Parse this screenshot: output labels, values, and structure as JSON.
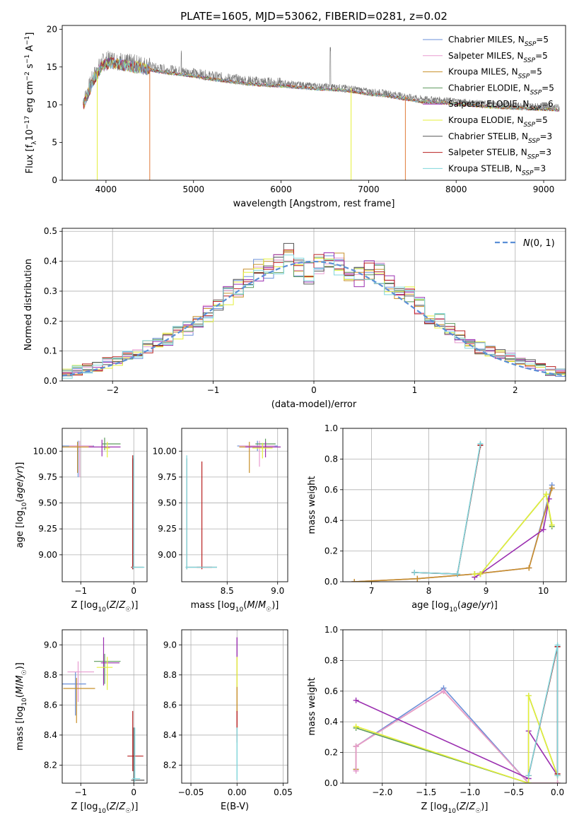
{
  "figure_title": "PLATE=1605, MJD=53062, FIBERID=0281, z=0.02",
  "colors": {
    "Chabrier MILES": "#6a8fd8",
    "Salpeter MILES": "#e89bd0",
    "Kroupa MILES": "#c8902a",
    "Chabrier ELODIE": "#5c9a5c",
    "Salpeter ELODIE": "#9b2fb0",
    "Kroupa ELODIE": "#e4ef3a",
    "Chabrier STELIB": "#555555",
    "Salpeter STELIB": "#b82020",
    "Kroupa STELIB": "#7fd6dc",
    "data": "#777777",
    "model_accent": "#e07a3a",
    "normal_curve": "#5b8fd6"
  },
  "chart_data": [
    {
      "id": "spectrum",
      "type": "line",
      "title": "PLATE=1605, MJD=53062, FIBERID=0281, z=0.02",
      "xlabel": "wavelength [Angstrom, rest frame]",
      "ylabel": "Flux [f_λ 10^-17 erg cm^-2 s^-1 A^-1]",
      "xlim": [
        3500,
        9250
      ],
      "ylim": [
        0,
        20.5
      ],
      "xticks": [
        4000,
        5000,
        6000,
        7000,
        8000,
        9000
      ],
      "yticks": [
        0,
        5,
        10,
        15,
        20
      ],
      "grid": false,
      "legend_position": "top-right",
      "legend": [
        "Chabrier MILES, N_SSP=5",
        "Salpeter MILES, N_SSP=5",
        "Kroupa MILES, N_SSP=5",
        "Chabrier ELODIE, N_SSP=5",
        "Salpeter ELODIE, N_SSP=6",
        "Kroupa ELODIE, N_SSP=5",
        "Chabrier STELIB, N_SSP=3",
        "Salpeter STELIB, N_SSP=3",
        "Kroupa STELIB, N_SSP=3"
      ],
      "continuum": {
        "x": [
          3750,
          3850,
          3950,
          4050,
          4150,
          4250,
          4400,
          4600,
          4800,
          5000,
          5200,
          5400,
          5600,
          5800,
          6000,
          6200,
          6400,
          6600,
          6800,
          7000,
          7200,
          7400,
          7600,
          7800,
          8000,
          8200,
          8400,
          8600,
          8800,
          9000,
          9200
        ],
        "y": [
          10.5,
          13.5,
          15.5,
          16.0,
          15.8,
          15.5,
          15.3,
          14.8,
          14.5,
          14.2,
          13.8,
          13.5,
          13.2,
          13.0,
          12.9,
          12.7,
          12.5,
          12.4,
          12.2,
          11.8,
          11.6,
          11.2,
          10.8,
          10.7,
          10.5,
          10.3,
          10.1,
          10.0,
          9.9,
          9.8,
          9.7
        ]
      }
    },
    {
      "id": "residuals",
      "type": "bar",
      "xlabel": "(data-model)/error",
      "ylabel": "Normed distribution",
      "xlim": [
        -2.5,
        2.5
      ],
      "ylim": [
        0,
        0.51
      ],
      "xticks": [
        -2,
        -1,
        0,
        1,
        2
      ],
      "yticks": [
        0.0,
        0.1,
        0.2,
        0.3,
        0.4,
        0.5
      ],
      "grid": true,
      "legend_position": "top-right",
      "legend": [
        "N(0,1)"
      ],
      "bin_edges": [
        -2.5,
        -2.4,
        -2.3,
        -2.2,
        -2.1,
        -2.0,
        -1.9,
        -1.8,
        -1.7,
        -1.6,
        -1.5,
        -1.4,
        -1.3,
        -1.2,
        -1.1,
        -1.0,
        -0.9,
        -0.8,
        -0.7,
        -0.6,
        -0.5,
        -0.4,
        -0.3,
        -0.2,
        -0.1,
        0.0,
        0.1,
        0.2,
        0.3,
        0.4,
        0.5,
        0.6,
        0.7,
        0.8,
        0.9,
        1.0,
        1.1,
        1.2,
        1.3,
        1.4,
        1.5,
        1.6,
        1.7,
        1.8,
        1.9,
        2.0,
        2.1,
        2.2,
        2.3,
        2.4,
        2.5
      ],
      "histogram": [
        0.025,
        0.035,
        0.04,
        0.05,
        0.06,
        0.065,
        0.08,
        0.095,
        0.115,
        0.13,
        0.14,
        0.16,
        0.175,
        0.2,
        0.225,
        0.26,
        0.285,
        0.31,
        0.34,
        0.37,
        0.38,
        0.395,
        0.42,
        0.38,
        0.36,
        0.39,
        0.41,
        0.39,
        0.36,
        0.35,
        0.37,
        0.36,
        0.32,
        0.3,
        0.285,
        0.25,
        0.21,
        0.2,
        0.17,
        0.15,
        0.13,
        0.11,
        0.1,
        0.085,
        0.075,
        0.065,
        0.055,
        0.045,
        0.035,
        0.03
      ],
      "normal_curve": {
        "label": "N(0,1)",
        "mu": 0,
        "sigma": 1
      }
    },
    {
      "id": "age_vs_Z",
      "type": "scatter",
      "xlabel": "Z [log10(Z/Z☉)]",
      "ylabel": "age [log10(age/yr)]",
      "xlim": [
        -1.35,
        0.25
      ],
      "ylim": [
        8.74,
        10.22
      ],
      "xticks": [
        -1,
        0
      ],
      "yticks": [
        9.0,
        9.25,
        9.5,
        9.75,
        10.0
      ],
      "grid": true,
      "crosses": [
        {
          "s": "Chabrier MILES",
          "x": -1.05,
          "y": 10.05,
          "xe": [
            0.3,
            0.3
          ],
          "ye": [
            0.3,
            0.05
          ]
        },
        {
          "s": "Salpeter MILES",
          "x": -1.02,
          "y": 10.05,
          "xe": [
            0.2,
            0.25
          ],
          "ye": [
            0.3,
            0.05
          ]
        },
        {
          "s": "Kroupa MILES",
          "x": -1.06,
          "y": 10.04,
          "xe": [
            0.3,
            0.3
          ],
          "ye": [
            0.25,
            0.05
          ]
        },
        {
          "s": "Chabrier ELODIE",
          "x": -0.55,
          "y": 10.07,
          "xe": [
            0.05,
            0.3
          ],
          "ye": [
            0.06,
            0.06
          ]
        },
        {
          "s": "Salpeter ELODIE",
          "x": -0.6,
          "y": 10.04,
          "xe": [
            0.25,
            0.35
          ],
          "ye": [
            0.09,
            0.07
          ]
        },
        {
          "s": "Kroupa ELODIE",
          "x": -0.5,
          "y": 10.03,
          "xe": [
            0.05,
            0.05
          ],
          "ye": [
            0.09,
            0.06
          ]
        },
        {
          "s": "Chabrier STELIB",
          "x": -0.02,
          "y": 8.88,
          "xe": [
            0.03,
            0.2
          ],
          "ye": [
            0.02,
            1.05
          ]
        },
        {
          "s": "Salpeter STELIB",
          "x": -0.02,
          "y": 8.88,
          "xe": [
            0.03,
            0.05
          ],
          "ye": [
            0.02,
            1.08
          ]
        },
        {
          "s": "Kroupa STELIB",
          "x": 0.0,
          "y": 8.88,
          "xe": [
            0.03,
            0.2
          ],
          "ye": [
            0.02,
            1.08
          ]
        }
      ]
    },
    {
      "id": "age_vs_mass",
      "type": "scatter",
      "xlabel": "mass [log10(M/M☉)]",
      "ylabel": "",
      "xlim": [
        8.05,
        9.1
      ],
      "ylim": [
        8.74,
        10.22
      ],
      "xticks": [
        8.5,
        9.0
      ],
      "yticks": [
        9.0,
        9.25,
        9.5,
        9.75,
        10.0
      ],
      "grid": true,
      "crosses": [
        {
          "s": "Chabrier MILES",
          "x": 8.8,
          "y": 10.05,
          "xe": [
            0.2,
            0.2
          ],
          "ye": [
            0.05,
            0.05
          ]
        },
        {
          "s": "Salpeter MILES",
          "x": 8.82,
          "y": 10.05,
          "xe": [
            0.2,
            0.15
          ],
          "ye": [
            0.2,
            0.05
          ]
        },
        {
          "s": "Kroupa MILES",
          "x": 8.72,
          "y": 10.04,
          "xe": [
            0.1,
            0.1
          ],
          "ye": [
            0.25,
            0.05
          ]
        },
        {
          "s": "Chabrier ELODIE",
          "x": 8.88,
          "y": 10.07,
          "xe": [
            0.1,
            0.1
          ],
          "ye": [
            0.05,
            0.05
          ]
        },
        {
          "s": "Salpeter ELODIE",
          "x": 8.88,
          "y": 10.04,
          "xe": [
            0.2,
            0.15
          ],
          "ye": [
            0.1,
            0.05
          ]
        },
        {
          "s": "Kroupa ELODIE",
          "x": 8.85,
          "y": 10.03,
          "xe": [
            0.1,
            0.1
          ],
          "ye": [
            0.1,
            0.05
          ]
        },
        {
          "s": "Chabrier STELIB",
          "x": 8.1,
          "y": 8.88,
          "xe": [
            0.01,
            0.3
          ],
          "ye": [
            0.02,
            1.05
          ]
        },
        {
          "s": "Salpeter STELIB",
          "x": 8.25,
          "y": 8.88,
          "xe": [
            0.05,
            0.1
          ],
          "ye": [
            0.02,
            1.02
          ]
        },
        {
          "s": "Kroupa STELIB",
          "x": 8.1,
          "y": 8.88,
          "xe": [
            0.01,
            0.3
          ],
          "ye": [
            0.02,
            1.08
          ]
        }
      ]
    },
    {
      "id": "weight_vs_age",
      "type": "line",
      "xlabel": "age [log10(age/yr)]",
      "ylabel": "mass weight",
      "xlim": [
        6.5,
        10.4
      ],
      "ylim": [
        0,
        1.0
      ],
      "xticks": [
        7,
        8,
        9,
        10
      ],
      "yticks": [
        0.0,
        0.2,
        0.4,
        0.6,
        0.8,
        1.0
      ],
      "grid": true,
      "series": [
        {
          "s": "Chabrier MILES",
          "x": [
            6.7,
            7.8,
            8.8,
            9.75,
            10.15
          ],
          "y": [
            0.0,
            0.02,
            0.05,
            0.09,
            0.63
          ]
        },
        {
          "s": "Salpeter MILES",
          "x": [
            6.7,
            7.8,
            8.8,
            9.75,
            10.15
          ],
          "y": [
            0.0,
            0.02,
            0.05,
            0.09,
            0.61
          ]
        },
        {
          "s": "Kroupa MILES",
          "x": [
            6.7,
            7.8,
            8.8,
            9.75,
            10.15
          ],
          "y": [
            0.0,
            0.02,
            0.05,
            0.09,
            0.61
          ]
        },
        {
          "s": "Chabrier ELODIE",
          "x": [
            8.8,
            8.9,
            10.05,
            10.15
          ],
          "y": [
            0.05,
            0.05,
            0.57,
            0.36
          ]
        },
        {
          "s": "Salpeter ELODIE",
          "x": [
            8.8,
            8.9,
            10.0,
            10.1
          ],
          "y": [
            0.03,
            0.05,
            0.34,
            0.54
          ]
        },
        {
          "s": "Kroupa ELODIE",
          "x": [
            8.8,
            8.9,
            10.05,
            10.15
          ],
          "y": [
            0.05,
            0.05,
            0.57,
            0.37
          ]
        },
        {
          "s": "Chabrier STELIB",
          "x": [
            7.75,
            8.5,
            8.9
          ],
          "y": [
            0.06,
            0.05,
            0.89
          ]
        },
        {
          "s": "Salpeter STELIB",
          "x": [
            7.75,
            8.5,
            8.9
          ],
          "y": [
            0.06,
            0.05,
            0.89
          ]
        },
        {
          "s": "Kroupa STELIB",
          "x": [
            7.75,
            8.5,
            8.9
          ],
          "y": [
            0.06,
            0.05,
            0.9
          ]
        }
      ]
    },
    {
      "id": "mass_vs_Z",
      "type": "scatter",
      "xlabel": "Z [log10(Z/Z☉)]",
      "ylabel": "mass [log10(M/M☉)]",
      "xlim": [
        -1.35,
        0.25
      ],
      "ylim": [
        8.08,
        9.1
      ],
      "xticks": [
        -1,
        0
      ],
      "yticks": [
        8.2,
        8.4,
        8.6,
        8.8,
        9.0
      ],
      "grid": true,
      "crosses": [
        {
          "s": "Chabrier MILES",
          "x": -1.1,
          "y": 8.74,
          "xe": [
            0.35,
            0.2
          ],
          "ye": [
            0.21,
            0.08
          ]
        },
        {
          "s": "Salpeter MILES",
          "x": -1.05,
          "y": 8.82,
          "xe": [
            0.2,
            0.3
          ],
          "ye": [
            0.2,
            0.07
          ]
        },
        {
          "s": "Kroupa MILES",
          "x": -1.08,
          "y": 8.71,
          "xe": [
            0.25,
            0.35
          ],
          "ye": [
            0.23,
            0.07
          ]
        },
        {
          "s": "Chabrier ELODIE",
          "x": -0.55,
          "y": 8.89,
          "xe": [
            0.2,
            0.3
          ],
          "ye": [
            0.15,
            0.05
          ]
        },
        {
          "s": "Salpeter ELODIE",
          "x": -0.57,
          "y": 8.88,
          "xe": [
            0.05,
            0.3
          ],
          "ye": [
            0.15,
            0.17
          ]
        },
        {
          "s": "Kroupa ELODIE",
          "x": -0.5,
          "y": 8.85,
          "xe": [
            0.2,
            0.1
          ],
          "ye": [
            0.15,
            0.07
          ]
        },
        {
          "s": "Chabrier STELIB",
          "x": 0.0,
          "y": 8.1,
          "xe": [
            0.05,
            0.2
          ],
          "ye": [
            0.02,
            0.35
          ]
        },
        {
          "s": "Salpeter STELIB",
          "x": -0.02,
          "y": 8.26,
          "xe": [
            0.1,
            0.2
          ],
          "ye": [
            0.1,
            0.3
          ]
        },
        {
          "s": "Kroupa STELIB",
          "x": 0.02,
          "y": 8.11,
          "xe": [
            0.05,
            0.1
          ],
          "ye": [
            0.02,
            0.34
          ]
        }
      ]
    },
    {
      "id": "mass_vs_EBV",
      "type": "scatter",
      "xlabel": "E(B-V)",
      "ylabel": "",
      "xlim": [
        -0.06,
        0.055
      ],
      "ylim": [
        8.08,
        9.1
      ],
      "xticks": [
        -0.05,
        0.0,
        0.05
      ],
      "yticks": [
        8.2,
        8.4,
        8.6,
        8.8,
        9.0
      ],
      "grid": true,
      "vbars": [
        {
          "s": "Salpeter ELODIE",
          "x": 0.0,
          "y0": 8.7,
          "y1": 9.05
        },
        {
          "s": "Kroupa ELODIE",
          "x": 0.0,
          "y0": 8.7,
          "y1": 8.92
        },
        {
          "s": "Kroupa MILES",
          "x": 0.0,
          "y0": 8.55,
          "y1": 8.72
        },
        {
          "s": "Salpeter STELIB",
          "x": 0.0,
          "y0": 8.35,
          "y1": 8.56
        },
        {
          "s": "Kroupa STELIB",
          "x": 0.0,
          "y0": 8.1,
          "y1": 8.45
        }
      ]
    },
    {
      "id": "weight_vs_Z",
      "type": "line",
      "xlabel": "Z [log10(Z/Z☉)]",
      "ylabel": "mass weight",
      "xlim": [
        -2.45,
        0.1
      ],
      "ylim": [
        0,
        1.0
      ],
      "xticks": [
        -2.0,
        -1.5,
        -1.0,
        -0.5,
        0.0
      ],
      "yticks": [
        0.0,
        0.2,
        0.4,
        0.6,
        0.8,
        1.0
      ],
      "grid": true,
      "series": [
        {
          "s": "Chabrier MILES",
          "x": [
            -2.3,
            -2.3,
            -1.3,
            -0.33,
            0.0
          ],
          "y": [
            0.09,
            0.24,
            0.62,
            0.0,
            0.0
          ]
        },
        {
          "s": "Kroupa MILES",
          "x": [
            -2.3,
            -2.3,
            -1.3,
            -0.33,
            0.0
          ],
          "y": [
            0.09,
            0.24,
            0.6,
            0.0,
            0.0
          ]
        },
        {
          "s": "Salpeter MILES",
          "x": [
            -2.3,
            -2.3,
            -1.3,
            -0.33,
            0.0
          ],
          "y": [
            0.08,
            0.24,
            0.6,
            0.0,
            0.0
          ]
        },
        {
          "s": "Salpeter ELODIE",
          "x": [
            -2.3,
            -0.33,
            -0.33,
            0.0
          ],
          "y": [
            0.54,
            0.03,
            0.34,
            0.05
          ]
        },
        {
          "s": "Chabrier ELODIE",
          "x": [
            -2.3,
            -0.33,
            -0.33,
            0.0
          ],
          "y": [
            0.36,
            0.0,
            0.57,
            0.05
          ]
        },
        {
          "s": "Kroupa ELODIE",
          "x": [
            -2.3,
            -0.33,
            -0.33,
            0.0
          ],
          "y": [
            0.37,
            0.0,
            0.57,
            0.05
          ]
        },
        {
          "s": "Chabrier STELIB",
          "x": [
            -0.33,
            0.0,
            0.0
          ],
          "y": [
            0.05,
            0.89,
            0.06
          ]
        },
        {
          "s": "Salpeter STELIB",
          "x": [
            -0.33,
            0.0,
            0.0
          ],
          "y": [
            0.05,
            0.89,
            0.06
          ]
        },
        {
          "s": "Kroupa STELIB",
          "x": [
            -0.33,
            0.0,
            0.0
          ],
          "y": [
            0.05,
            0.9,
            0.05
          ]
        }
      ]
    }
  ]
}
